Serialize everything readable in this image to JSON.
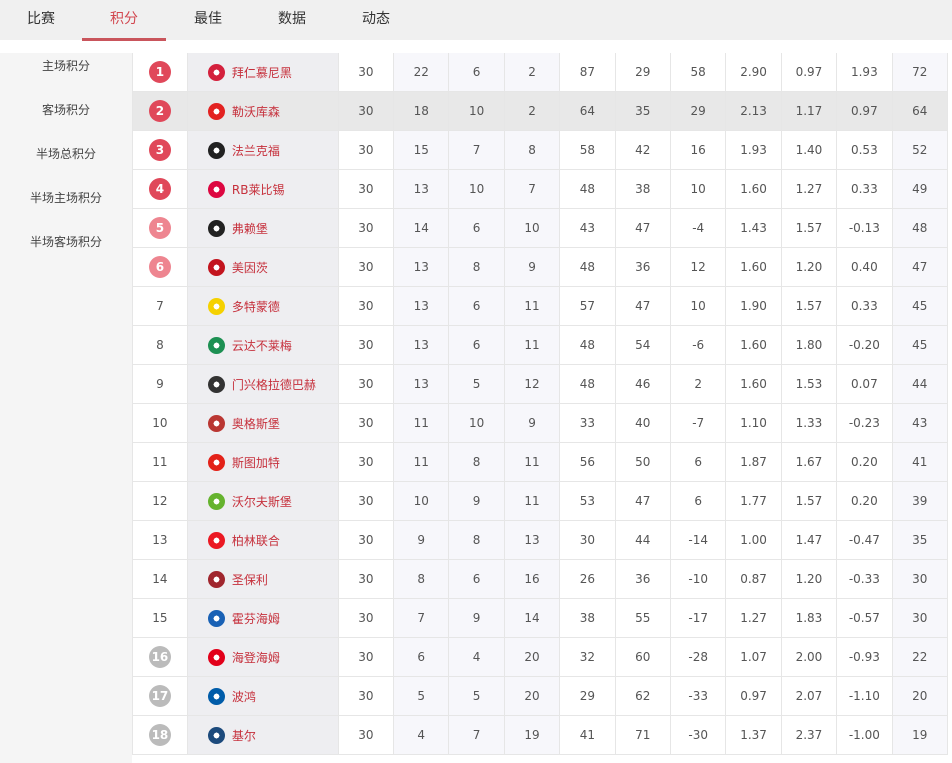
{
  "tabs": [
    "比赛",
    "积分",
    "最佳",
    "数据",
    "动态"
  ],
  "active_tab": 1,
  "sidebar": [
    "主场积分",
    "客场积分",
    "半场总积分",
    "半场主场积分",
    "半场客场积分"
  ],
  "colors": {
    "accent": "#d2474f",
    "top4": "#e0485a",
    "europa": "#ee8590",
    "relegation": "#bbbbbb",
    "highlight_row": "#e8e8e8"
  },
  "highlight_row": 2,
  "rows": [
    {
      "rank": "1",
      "team": "拜仁慕尼黑",
      "logo": "#d4213d",
      "zone": "top4",
      "v": [
        "30",
        "22",
        "6",
        "2",
        "87",
        "29",
        "58",
        "2.90",
        "0.97",
        "1.93",
        "72"
      ]
    },
    {
      "rank": "2",
      "team": "勒沃库森",
      "logo": "#e32221",
      "zone": "top4",
      "v": [
        "30",
        "18",
        "10",
        "2",
        "64",
        "35",
        "29",
        "2.13",
        "1.17",
        "0.97",
        "64"
      ]
    },
    {
      "rank": "3",
      "team": "法兰克福",
      "logo": "#222222",
      "zone": "top4",
      "v": [
        "30",
        "15",
        "7",
        "8",
        "58",
        "42",
        "16",
        "1.93",
        "1.40",
        "0.53",
        "52"
      ]
    },
    {
      "rank": "4",
      "team": "RB莱比锡",
      "logo": "#dd0741",
      "zone": "top4",
      "v": [
        "30",
        "13",
        "10",
        "7",
        "48",
        "38",
        "10",
        "1.60",
        "1.27",
        "0.33",
        "49"
      ]
    },
    {
      "rank": "5",
      "team": "弗赖堡",
      "logo": "#222222",
      "zone": "europa",
      "v": [
        "30",
        "14",
        "6",
        "10",
        "43",
        "47",
        "-4",
        "1.43",
        "1.57",
        "-0.13",
        "48"
      ]
    },
    {
      "rank": "6",
      "team": "美因茨",
      "logo": "#c3141e",
      "zone": "europa",
      "v": [
        "30",
        "13",
        "8",
        "9",
        "48",
        "36",
        "12",
        "1.60",
        "1.20",
        "0.40",
        "47"
      ]
    },
    {
      "rank": "7",
      "team": "多特蒙德",
      "logo": "#f5d100",
      "zone": "",
      "v": [
        "30",
        "13",
        "6",
        "11",
        "57",
        "47",
        "10",
        "1.90",
        "1.57",
        "0.33",
        "45"
      ]
    },
    {
      "rank": "8",
      "team": "云达不莱梅",
      "logo": "#1d9053",
      "zone": "",
      "v": [
        "30",
        "13",
        "6",
        "11",
        "48",
        "54",
        "-6",
        "1.60",
        "1.80",
        "-0.20",
        "45"
      ]
    },
    {
      "rank": "9",
      "team": "门兴格拉德巴赫",
      "logo": "#333333",
      "zone": "",
      "v": [
        "30",
        "13",
        "5",
        "12",
        "48",
        "46",
        "2",
        "1.60",
        "1.53",
        "0.07",
        "44"
      ]
    },
    {
      "rank": "10",
      "team": "奥格斯堡",
      "logo": "#ba3733",
      "zone": "",
      "v": [
        "30",
        "11",
        "10",
        "9",
        "33",
        "40",
        "-7",
        "1.10",
        "1.33",
        "-0.23",
        "43"
      ]
    },
    {
      "rank": "11",
      "team": "斯图加特",
      "logo": "#e32219",
      "zone": "",
      "v": [
        "30",
        "11",
        "8",
        "11",
        "56",
        "50",
        "6",
        "1.87",
        "1.67",
        "0.20",
        "41"
      ]
    },
    {
      "rank": "12",
      "team": "沃尔夫斯堡",
      "logo": "#65b32e",
      "zone": "",
      "v": [
        "30",
        "10",
        "9",
        "11",
        "53",
        "47",
        "6",
        "1.77",
        "1.57",
        "0.20",
        "39"
      ]
    },
    {
      "rank": "13",
      "team": "柏林联合",
      "logo": "#eb1923",
      "zone": "",
      "v": [
        "30",
        "9",
        "8",
        "13",
        "30",
        "44",
        "-14",
        "1.00",
        "1.47",
        "-0.47",
        "35"
      ]
    },
    {
      "rank": "14",
      "team": "圣保利",
      "logo": "#a0262e",
      "zone": "",
      "v": [
        "30",
        "8",
        "6",
        "16",
        "26",
        "36",
        "-10",
        "0.87",
        "1.20",
        "-0.33",
        "30"
      ]
    },
    {
      "rank": "15",
      "team": "霍芬海姆",
      "logo": "#1961b5",
      "zone": "",
      "v": [
        "30",
        "7",
        "9",
        "14",
        "38",
        "55",
        "-17",
        "1.27",
        "1.83",
        "-0.57",
        "30"
      ]
    },
    {
      "rank": "16",
      "team": "海登海姆",
      "logo": "#e2001a",
      "zone": "relegation",
      "v": [
        "30",
        "6",
        "4",
        "20",
        "32",
        "60",
        "-28",
        "1.07",
        "2.00",
        "-0.93",
        "22"
      ]
    },
    {
      "rank": "17",
      "team": "波鸿",
      "logo": "#005ca9",
      "zone": "relegation",
      "v": [
        "30",
        "5",
        "5",
        "20",
        "29",
        "62",
        "-33",
        "0.97",
        "2.07",
        "-1.10",
        "20"
      ]
    },
    {
      "rank": "18",
      "team": "基尔",
      "logo": "#1c4a7c",
      "zone": "relegation",
      "v": [
        "30",
        "4",
        "7",
        "19",
        "41",
        "71",
        "-30",
        "1.37",
        "2.37",
        "-1.00",
        "19"
      ]
    }
  ]
}
